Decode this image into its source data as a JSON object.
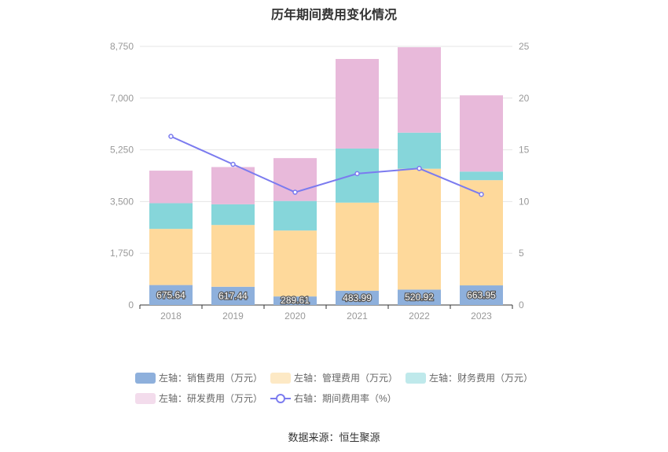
{
  "chart_data": {
    "type": "bar",
    "title": "历年期间费用变化情况",
    "categories": [
      "2018",
      "2019",
      "2020",
      "2021",
      "2022",
      "2023"
    ],
    "y_left_ticks": [
      "0",
      "1,750",
      "3,500",
      "5,250",
      "7,000",
      "8,750"
    ],
    "y_right_ticks": [
      "0",
      "5",
      "10",
      "15",
      "20",
      "25"
    ],
    "ylim_left": [
      0,
      8750
    ],
    "ylim_right": [
      0,
      25
    ],
    "grid": true,
    "series": [
      {
        "name": "左轴：销售费用（万元）",
        "axis": "left",
        "stack": true,
        "color": "#8eb0dc",
        "values": [
          675.64,
          617.44,
          289.61,
          483.99,
          520.92,
          663.95
        ],
        "labels": [
          "675.64",
          "617.44",
          "289.61",
          "483.99",
          "520.92",
          "663.95"
        ]
      },
      {
        "name": "左轴：管理费用（万元）",
        "axis": "left",
        "stack": true,
        "color": "#fed99b",
        "values": [
          1900,
          2090,
          2230,
          2980,
          4090,
          3560
        ]
      },
      {
        "name": "左轴：财务费用（万元）",
        "axis": "left",
        "stack": true,
        "color": "#86d6da",
        "values": [
          870,
          700,
          1000,
          1830,
          1220,
          290
        ]
      },
      {
        "name": "左轴：研发费用（万元）",
        "axis": "left",
        "stack": true,
        "color": "#e8b9da",
        "values": [
          1100,
          1260,
          1450,
          3030,
          2890,
          2580
        ]
      },
      {
        "name": "右轴：期间费用率（%）",
        "axis": "right",
        "type": "line",
        "color": "#7b7bef",
        "values": [
          16.3,
          13.6,
          10.9,
          12.7,
          13.2,
          10.7
        ]
      }
    ],
    "legend_position": "bottom"
  },
  "legend": [
    {
      "label": "左轴：销售费用（万元）",
      "color": "#8eb0dc"
    },
    {
      "label": "左轴：管理费用（万元）",
      "color": "#fde9c5"
    },
    {
      "label": "左轴：财务费用（万元）",
      "color": "#bfe9eb"
    },
    {
      "label": "左轴：研发费用（万元）",
      "color": "#f3dcec"
    },
    {
      "label": "右轴：期间费用率（%）",
      "color": "#7b7bef"
    }
  ],
  "source": "数据来源：恒生聚源"
}
